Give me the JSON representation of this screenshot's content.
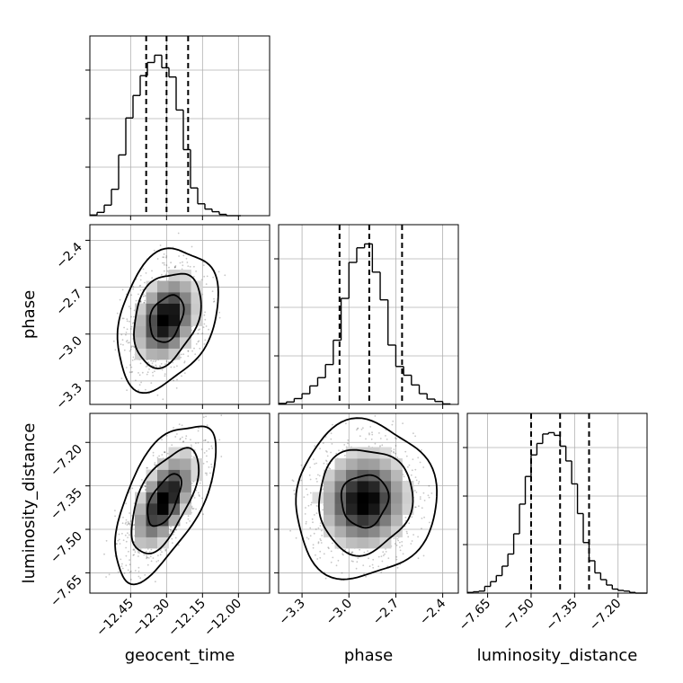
{
  "chart_data": {
    "type": "corner",
    "parameters": [
      {
        "name": "geocent_time",
        "range": [
          -12.62,
          -11.87
        ],
        "ticks": [
          -12.45,
          -12.3,
          -12.15,
          -12.0
        ],
        "tick_labels": [
          "−12.45",
          "−12.30",
          "−12.15",
          "−12.00"
        ],
        "quantiles": [
          -12.385,
          -12.3,
          -12.21
        ],
        "histogram": {
          "bin_edges": [
            -12.62,
            -12.59,
            -12.56,
            -12.53,
            -12.5,
            -12.47,
            -12.44,
            -12.41,
            -12.38,
            -12.35,
            -12.32,
            -12.29,
            -12.26,
            -12.23,
            -12.2,
            -12.17,
            -12.14,
            -12.11,
            -12.08,
            -12.05,
            -12.02,
            -11.99
          ],
          "counts": [
            1,
            5,
            16,
            40,
            92,
            148,
            182,
            212,
            232,
            243,
            224,
            210,
            160,
            100,
            42,
            18,
            10,
            6,
            2,
            0,
            0
          ]
        }
      },
      {
        "name": "phase",
        "range": [
          -3.45,
          -2.3
        ],
        "ticks": [
          -3.3,
          -3.0,
          -2.7,
          -2.4
        ],
        "tick_labels": [
          "−3.3",
          "−3.0",
          "−2.7",
          "−2.4"
        ],
        "quantiles": [
          -3.06,
          -2.87,
          -2.66
        ],
        "histogram": {
          "bin_edges": [
            -3.45,
            -3.4,
            -3.35,
            -3.3,
            -3.25,
            -3.2,
            -3.15,
            -3.1,
            -3.05,
            -3.0,
            -2.95,
            -2.9,
            -2.85,
            -2.8,
            -2.75,
            -2.7,
            -2.65,
            -2.6,
            -2.55,
            -2.5,
            -2.45,
            -2.4,
            -2.35
          ],
          "counts": [
            2,
            5,
            12,
            22,
            38,
            55,
            82,
            132,
            218,
            292,
            322,
            330,
            272,
            215,
            122,
            78,
            60,
            40,
            22,
            11,
            6,
            1
          ]
        }
      },
      {
        "name": "luminosity_distance",
        "range": [
          -7.72,
          -7.1
        ],
        "ticks": [
          -7.65,
          -7.5,
          -7.35,
          -7.2
        ],
        "tick_labels": [
          "−7.65",
          "−7.50",
          "−7.35",
          "−7.20"
        ],
        "quantiles": [
          -7.5,
          -7.4,
          -7.3
        ],
        "histogram": {
          "bin_edges": [
            -7.72,
            -7.7,
            -7.68,
            -7.66,
            -7.64,
            -7.62,
            -7.6,
            -7.58,
            -7.56,
            -7.54,
            -7.52,
            -7.5,
            -7.48,
            -7.46,
            -7.44,
            -7.42,
            -7.4,
            -7.38,
            -7.36,
            -7.34,
            -7.32,
            -7.3,
            -7.28,
            -7.26,
            -7.24,
            -7.22,
            -7.2,
            -7.18,
            -7.16,
            -7.14,
            -7.12,
            -7.1
          ],
          "counts": [
            1,
            2,
            3,
            10,
            17,
            26,
            40,
            58,
            88,
            132,
            173,
            205,
            222,
            236,
            238,
            234,
            218,
            196,
            162,
            118,
            75,
            48,
            30,
            20,
            12,
            6,
            4,
            3,
            1,
            0,
            0
          ]
        }
      }
    ],
    "pairs": [
      {
        "x": "geocent_time",
        "y": "phase",
        "center": [
          -12.3,
          -2.9
        ],
        "sigma": [
          0.07,
          0.15
        ],
        "correlation": 0.3
      },
      {
        "x": "geocent_time",
        "y": "luminosity_distance",
        "center": [
          -12.31,
          -7.4
        ],
        "sigma": [
          0.07,
          0.09
        ],
        "correlation": 0.6
      },
      {
        "x": "phase",
        "y": "luminosity_distance",
        "center": [
          -2.9,
          -7.4
        ],
        "sigma": [
          0.15,
          0.09
        ],
        "correlation": 0.05
      }
    ],
    "grid": true
  }
}
